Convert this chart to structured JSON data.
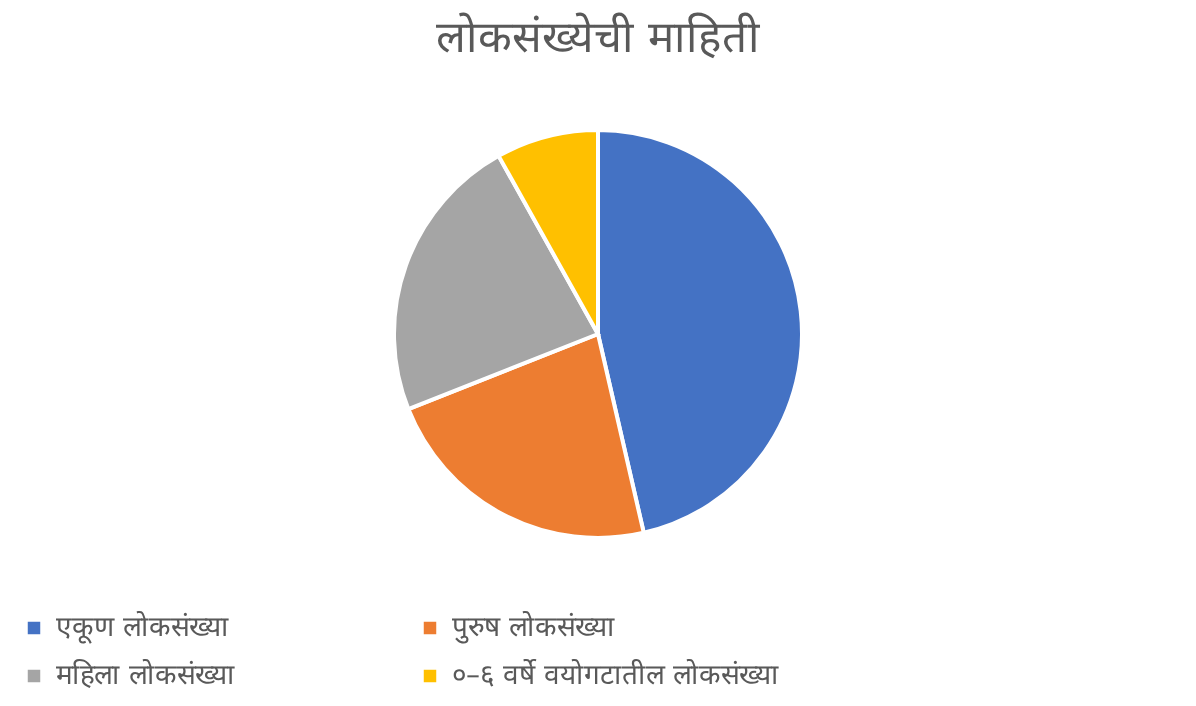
{
  "chart_data": {
    "type": "pie",
    "title": "लोकसंख्येची माहिती",
    "categories": [
      "एकूण लोकसंख्या",
      "पुरुष लोकसंख्या",
      "महिला लोकसंख्या",
      "०–६ वर्षे वयोगटातील लोकसंख्या"
    ],
    "values": [
      46.4,
      22.6,
      22.9,
      8.1
    ],
    "colors": [
      "#4472c4",
      "#ed7d31",
      "#a5a5a5",
      "#ffc000"
    ],
    "legend": "bottom"
  }
}
